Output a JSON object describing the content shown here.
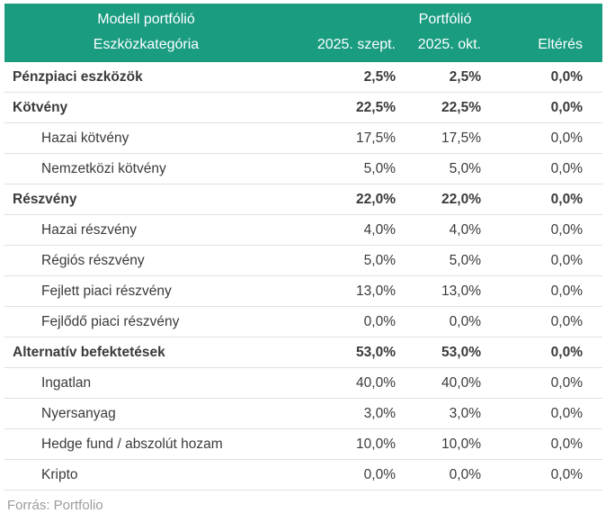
{
  "header": {
    "group_left": "Modell portfólió",
    "group_right": "Portfólió",
    "col_category": "Eszközkategória",
    "col_sept": "2025. szept.",
    "col_okt": "2025. okt.",
    "col_elteres": "Eltérés"
  },
  "rows": [
    {
      "label": "Pénzpiaci eszközök",
      "style": "category",
      "sept": "2,5%",
      "okt": "2,5%",
      "diff": "0,0%"
    },
    {
      "label": "Kötvény",
      "style": "category",
      "sept": "22,5%",
      "okt": "22,5%",
      "diff": "0,0%"
    },
    {
      "label": "Hazai kötvény",
      "style": "sub",
      "sept": "17,5%",
      "okt": "17,5%",
      "diff": "0,0%"
    },
    {
      "label": "Nemzetközi kötvény",
      "style": "sub",
      "sept": "5,0%",
      "okt": "5,0%",
      "diff": "0,0%"
    },
    {
      "label": "Részvény",
      "style": "category",
      "sept": "22,0%",
      "okt": "22,0%",
      "diff": "0,0%"
    },
    {
      "label": "Hazai részvény",
      "style": "sub",
      "sept": "4,0%",
      "okt": "4,0%",
      "diff": "0,0%"
    },
    {
      "label": "Régiós részvény",
      "style": "sub",
      "sept": "5,0%",
      "okt": "5,0%",
      "diff": "0,0%"
    },
    {
      "label": "Fejlett piaci részvény",
      "style": "sub",
      "sept": "13,0%",
      "okt": "13,0%",
      "diff": "0,0%"
    },
    {
      "label": "Fejlődő piaci részvény",
      "style": "sub",
      "sept": "0,0%",
      "okt": "0,0%",
      "diff": "0,0%"
    },
    {
      "label": "Alternatív befektetések",
      "style": "category",
      "sept": "53,0%",
      "okt": "53,0%",
      "diff": "0,0%"
    },
    {
      "label": "Ingatlan",
      "style": "sub",
      "sept": "40,0%",
      "okt": "40,0%",
      "diff": "0,0%"
    },
    {
      "label": "Nyersanyag",
      "style": "sub",
      "sept": "3,0%",
      "okt": "3,0%",
      "diff": "0,0%"
    },
    {
      "label": "Hedge fund / abszolút hozam",
      "style": "sub",
      "sept": "10,0%",
      "okt": "10,0%",
      "diff": "0,0%"
    },
    {
      "label": "Kripto",
      "style": "sub",
      "sept": "0,0%",
      "okt": "0,0%",
      "diff": "0,0%"
    }
  ],
  "footer": {
    "source": "Forrás: Portfolio"
  },
  "colors": {
    "header_bg": "#199c80",
    "header_text": "#ffffff",
    "body_text": "#3a3a3a",
    "row_border": "#e0e0e0",
    "source_text": "#9c9c9c"
  },
  "chart_data": {
    "type": "table",
    "title": "Modell portfólió – Portfólió",
    "columns": [
      "Eszközkategória",
      "2025. szept.",
      "2025. okt.",
      "Eltérés"
    ],
    "rows": [
      {
        "category": "Pénzpiaci eszközök",
        "level": 0,
        "szept_2025_pct": 2.5,
        "okt_2025_pct": 2.5,
        "elteres_pct": 0.0
      },
      {
        "category": "Kötvény",
        "level": 0,
        "szept_2025_pct": 22.5,
        "okt_2025_pct": 22.5,
        "elteres_pct": 0.0
      },
      {
        "category": "Hazai kötvény",
        "level": 1,
        "szept_2025_pct": 17.5,
        "okt_2025_pct": 17.5,
        "elteres_pct": 0.0
      },
      {
        "category": "Nemzetközi kötvény",
        "level": 1,
        "szept_2025_pct": 5.0,
        "okt_2025_pct": 5.0,
        "elteres_pct": 0.0
      },
      {
        "category": "Részvény",
        "level": 0,
        "szept_2025_pct": 22.0,
        "okt_2025_pct": 22.0,
        "elteres_pct": 0.0
      },
      {
        "category": "Hazai részvény",
        "level": 1,
        "szept_2025_pct": 4.0,
        "okt_2025_pct": 4.0,
        "elteres_pct": 0.0
      },
      {
        "category": "Régiós részvény",
        "level": 1,
        "szept_2025_pct": 5.0,
        "okt_2025_pct": 5.0,
        "elteres_pct": 0.0
      },
      {
        "category": "Fejlett piaci részvény",
        "level": 1,
        "szept_2025_pct": 13.0,
        "okt_2025_pct": 13.0,
        "elteres_pct": 0.0
      },
      {
        "category": "Fejlődő piaci részvény",
        "level": 1,
        "szept_2025_pct": 0.0,
        "okt_2025_pct": 0.0,
        "elteres_pct": 0.0
      },
      {
        "category": "Alternatív befektetések",
        "level": 0,
        "szept_2025_pct": 53.0,
        "okt_2025_pct": 53.0,
        "elteres_pct": 0.0
      },
      {
        "category": "Ingatlan",
        "level": 1,
        "szept_2025_pct": 40.0,
        "okt_2025_pct": 40.0,
        "elteres_pct": 0.0
      },
      {
        "category": "Nyersanyag",
        "level": 1,
        "szept_2025_pct": 3.0,
        "okt_2025_pct": 3.0,
        "elteres_pct": 0.0
      },
      {
        "category": "Hedge fund / abszolút hozam",
        "level": 1,
        "szept_2025_pct": 10.0,
        "okt_2025_pct": 10.0,
        "elteres_pct": 0.0
      },
      {
        "category": "Kripto",
        "level": 1,
        "szept_2025_pct": 0.0,
        "okt_2025_pct": 0.0,
        "elteres_pct": 0.0
      }
    ]
  }
}
